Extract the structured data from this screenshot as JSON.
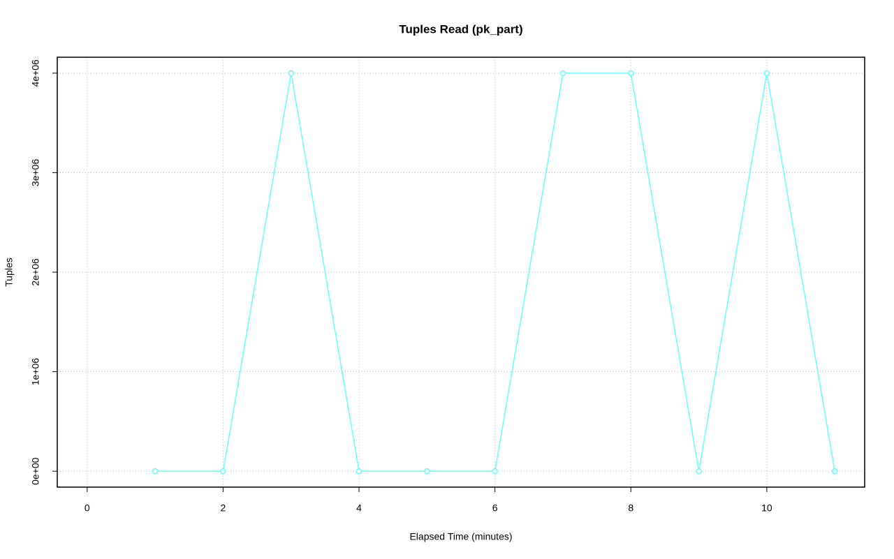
{
  "chart_data": {
    "type": "line",
    "title": "Tuples Read (pk_part)",
    "xlabel": "Elapsed Time (minutes)",
    "ylabel": "Tuples",
    "x": [
      1,
      2,
      3,
      4,
      5,
      6,
      7,
      8,
      9,
      10,
      11
    ],
    "series": [
      {
        "color": "#66ffff",
        "values": [
          0,
          0,
          4000000,
          0,
          0,
          0,
          4000000,
          4000000,
          0,
          4000000,
          0
        ]
      }
    ],
    "xlim": [
      -0.44,
      11.44
    ],
    "xticks": [
      0,
      2,
      4,
      6,
      8,
      10
    ],
    "ylim": [
      -160000,
      4160000
    ],
    "yticks": [
      {
        "value": 0,
        "label": "0e+00"
      },
      {
        "value": 1000000,
        "label": "1e+06"
      },
      {
        "value": 2000000,
        "label": "2e+06"
      },
      {
        "value": 3000000,
        "label": "3e+06"
      },
      {
        "value": 4000000,
        "label": "4e+06"
      }
    ],
    "grid": true
  }
}
